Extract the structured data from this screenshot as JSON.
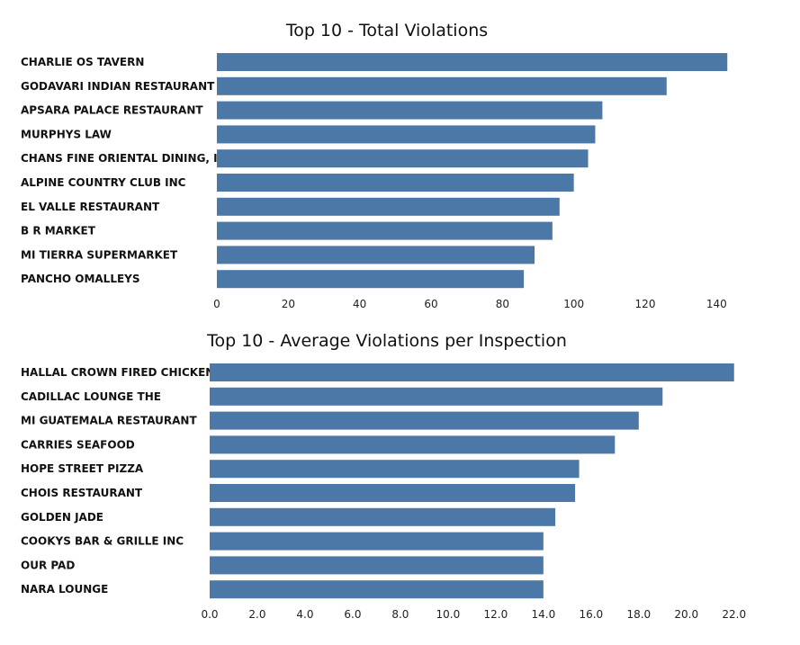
{
  "colors": {
    "bar": "#4c78a8",
    "text": "#111111",
    "background": "#ffffff"
  },
  "chart_data": [
    {
      "type": "bar",
      "orientation": "horizontal",
      "title": "Top 10 - Total Violations",
      "categories": [
        "CHARLIE OS TAVERN",
        "GODAVARI INDIAN RESTAURANT",
        "APSARA PALACE RESTAURANT",
        "MURPHYS LAW",
        "CHANS FINE ORIENTAL DINING, INC",
        "ALPINE COUNTRY CLUB INC",
        "EL VALLE RESTAURANT",
        "B R MARKET",
        "MI TIERRA SUPERMARKET",
        "PANCHO OMALLEYS"
      ],
      "values": [
        143,
        126,
        108,
        106,
        104,
        100,
        96,
        94,
        89,
        86
      ],
      "xlim": [
        0,
        150
      ],
      "xticks": [
        "0",
        "20",
        "40",
        "60",
        "80",
        "100",
        "120",
        "140"
      ],
      "grid": false
    },
    {
      "type": "bar",
      "orientation": "horizontal",
      "title": "Top 10 - Average Violations per Inspection",
      "categories": [
        "HALLAL CROWN FIRED CHICKEN",
        "CADILLAC LOUNGE THE",
        "MI GUATEMALA RESTAURANT",
        "CARRIES SEAFOOD",
        "HOPE STREET PIZZA",
        "CHOIS RESTAURANT",
        "GOLDEN JADE",
        "COOKYS BAR & GRILLE INC",
        "OUR PAD",
        "NARA LOUNGE"
      ],
      "values": [
        22.0,
        19.0,
        18.0,
        17.0,
        15.5,
        15.33,
        14.5,
        14.0,
        14.0,
        14.0
      ],
      "xlim": [
        0,
        22.5
      ],
      "xticks": [
        "0.0",
        "2.0",
        "4.0",
        "6.0",
        "8.0",
        "10.0",
        "12.0",
        "14.0",
        "16.0",
        "18.0",
        "20.0",
        "22.0"
      ],
      "grid": false
    }
  ]
}
